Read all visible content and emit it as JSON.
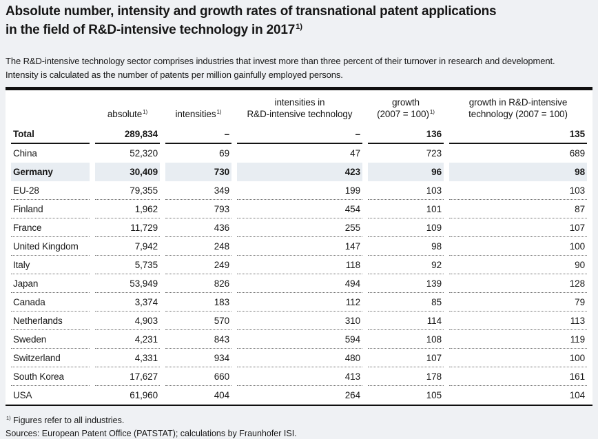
{
  "page": {
    "title_line1": "Absolute number, intensity and growth rates of transnational patent applications",
    "title_line2": "in the field of R&D-intensive technology in 2017",
    "title_footnote_marker": "1)",
    "subtitle": "The R&D-intensive technology sector comprises industries that invest more than three percent of their turnover in research and development. Intensity is calculated as the number of patents per million gainfully employed persons."
  },
  "colors": {
    "page_background": "#eff1f4",
    "table_background": "#ffffff",
    "highlight_row_background": "#e8edf2",
    "rule_color": "#101010",
    "text_color": "#161616"
  },
  "table": {
    "columns": [
      {
        "label": "",
        "marker": ""
      },
      {
        "label": "absolute",
        "marker": "1)"
      },
      {
        "label": "intensities",
        "marker": "1)"
      },
      {
        "label": "intensities in\nR&D-intensive technology",
        "marker": ""
      },
      {
        "label": "growth\n(2007 = 100)",
        "marker": "1)"
      },
      {
        "label": "growth in R&D-intensive\ntechnology (2007 = 100)",
        "marker": ""
      }
    ],
    "rows": [
      {
        "name": "Total",
        "values": [
          "289,834",
          "–",
          "–",
          "136",
          "135"
        ],
        "style": "total"
      },
      {
        "name": "China",
        "values": [
          "52,320",
          "69",
          "47",
          "723",
          "689"
        ],
        "style": "normal"
      },
      {
        "name": "Germany",
        "values": [
          "30,409",
          "730",
          "423",
          "96",
          "98"
        ],
        "style": "highlight"
      },
      {
        "name": "EU-28",
        "values": [
          "79,355",
          "349",
          "199",
          "103",
          "103"
        ],
        "style": "normal"
      },
      {
        "name": "Finland",
        "values": [
          "1,962",
          "793",
          "454",
          "101",
          "87"
        ],
        "style": "normal"
      },
      {
        "name": "France",
        "values": [
          "11,729",
          "436",
          "255",
          "109",
          "107"
        ],
        "style": "normal"
      },
      {
        "name": "United Kingdom",
        "values": [
          "7,942",
          "248",
          "147",
          "98",
          "100"
        ],
        "style": "normal"
      },
      {
        "name": "Italy",
        "values": [
          "5,735",
          "249",
          "118",
          "92",
          "90"
        ],
        "style": "normal"
      },
      {
        "name": "Japan",
        "values": [
          "53,949",
          "826",
          "494",
          "139",
          "128"
        ],
        "style": "normal"
      },
      {
        "name": "Canada",
        "values": [
          "3,374",
          "183",
          "112",
          "85",
          "79"
        ],
        "style": "normal"
      },
      {
        "name": "Netherlands",
        "values": [
          "4,903",
          "570",
          "310",
          "114",
          "113"
        ],
        "style": "normal"
      },
      {
        "name": "Sweden",
        "values": [
          "4,231",
          "843",
          "594",
          "108",
          "119"
        ],
        "style": "normal"
      },
      {
        "name": "Switzerland",
        "values": [
          "4,331",
          "934",
          "480",
          "107",
          "100"
        ],
        "style": "normal"
      },
      {
        "name": "South Korea",
        "values": [
          "17,627",
          "660",
          "413",
          "178",
          "161"
        ],
        "style": "normal"
      },
      {
        "name": "USA",
        "values": [
          "61,960",
          "404",
          "264",
          "105",
          "104"
        ],
        "style": "normal"
      }
    ]
  },
  "footnotes": [
    {
      "marker": "1)",
      "text": "Figures refer to all industries.",
      "truncated": false
    },
    {
      "marker": "",
      "text": "Sources: European Patent Office (PATSTAT); calculations by Fraunhofer ISI.",
      "truncated": true
    }
  ]
}
